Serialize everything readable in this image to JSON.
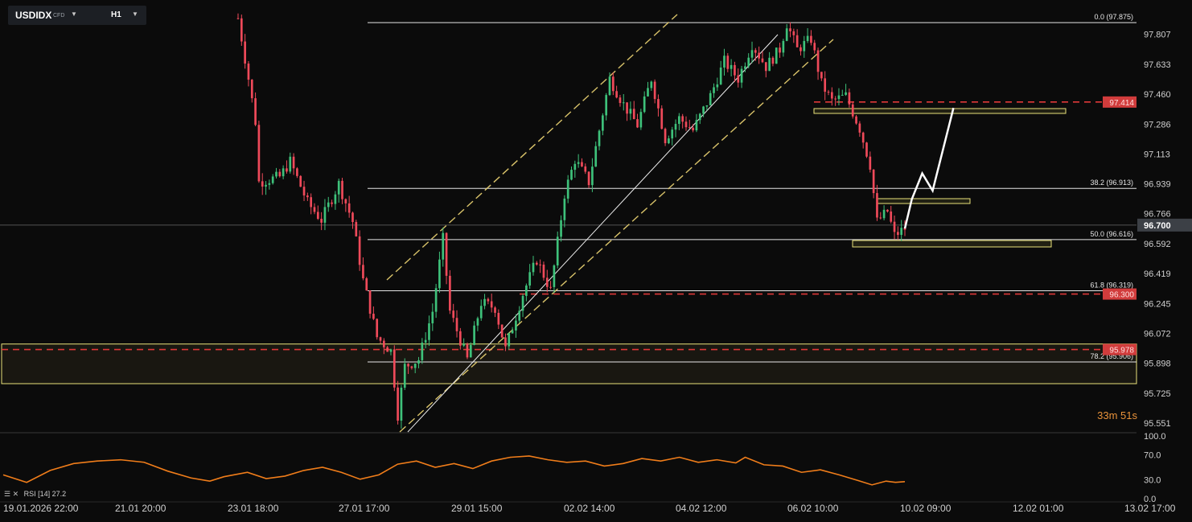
{
  "header": {
    "symbol": "USDIDX",
    "instrument_type": "CFD",
    "timeframe": "H1"
  },
  "countdown": "33m 51s",
  "rsi": {
    "label": "RSI [14]",
    "value": "27.2",
    "ticks": [
      "100.0",
      "70.0",
      "30.0",
      "0.0"
    ],
    "color": "#f07d1a"
  },
  "colors": {
    "background": "#0b0b0b",
    "up_candle": "#3ec17a",
    "down_candle": "#ef4a5a",
    "fib_line": "#e6e6e6",
    "zone_outline": "#e9e27a",
    "dashed_level": "#e03838",
    "price_tag": "#d13c3c",
    "channel": "#d9c36a"
  },
  "chart_data": {
    "type": "candlestick",
    "symbol": "USDIDX",
    "timeframe": "H1",
    "ylim": [
      95.5,
      97.95
    ],
    "y_ticks": [
      "97.807",
      "97.633",
      "97.460",
      "97.286",
      "97.113",
      "96.939",
      "96.766",
      "96.592",
      "96.419",
      "96.245",
      "96.072",
      "95.898",
      "95.725",
      "95.551"
    ],
    "x_labels": [
      "19.01.2026  22:00",
      "21.01  20:00",
      "23.01  18:00",
      "27.01  17:00",
      "29.01  15:00",
      "02.02  14:00",
      "04.02  12:00",
      "06.02  10:00",
      "10.02  09:00",
      "12.02  01:00",
      "13.02  17:00"
    ],
    "current_price": "96.700",
    "fibonacci": [
      {
        "label": "0.0 (97.875)",
        "value": 97.875
      },
      {
        "label": "38.2 (96.913)",
        "value": 96.913
      },
      {
        "label": "50.0 (96.616)",
        "value": 96.616
      },
      {
        "label": "61.8 (96.319)",
        "value": 96.319
      },
      {
        "label": "78.2 (95.906)",
        "value": 95.906
      }
    ],
    "dashed_levels": [
      {
        "label": "97.414",
        "value": 97.414
      },
      {
        "label": "96.300",
        "value": 96.3
      },
      {
        "label": "95.978",
        "value": 95.978
      }
    ],
    "support_zone": [
      95.78,
      96.01
    ],
    "path": [
      {
        "t": 0,
        "p": 97.9
      },
      {
        "t": 3,
        "p": 97.55
      },
      {
        "t": 5,
        "p": 97.3
      },
      {
        "t": 6,
        "p": 96.95
      },
      {
        "t": 12,
        "p": 96.98
      },
      {
        "t": 15,
        "p": 97.07
      },
      {
        "t": 20,
        "p": 96.83
      },
      {
        "t": 24,
        "p": 96.73
      },
      {
        "t": 29,
        "p": 96.94
      },
      {
        "t": 33,
        "p": 96.72
      },
      {
        "t": 36,
        "p": 96.38
      },
      {
        "t": 40,
        "p": 96.05
      },
      {
        "t": 44,
        "p": 95.97
      },
      {
        "t": 46,
        "p": 95.6
      },
      {
        "t": 48,
        "p": 95.88
      },
      {
        "t": 52,
        "p": 95.92
      },
      {
        "t": 56,
        "p": 96.2
      },
      {
        "t": 59,
        "p": 96.62
      },
      {
        "t": 61,
        "p": 96.2
      },
      {
        "t": 66,
        "p": 95.92
      },
      {
        "t": 70,
        "p": 96.25
      },
      {
        "t": 74,
        "p": 96.22
      },
      {
        "t": 77,
        "p": 95.98
      },
      {
        "t": 82,
        "p": 96.3
      },
      {
        "t": 86,
        "p": 96.5
      },
      {
        "t": 90,
        "p": 96.32
      },
      {
        "t": 94,
        "p": 96.88
      },
      {
        "t": 97,
        "p": 97.08
      },
      {
        "t": 101,
        "p": 96.95
      },
      {
        "t": 104,
        "p": 97.25
      },
      {
        "t": 107,
        "p": 97.55
      },
      {
        "t": 111,
        "p": 97.4
      },
      {
        "t": 115,
        "p": 97.28
      },
      {
        "t": 119,
        "p": 97.55
      },
      {
        "t": 123,
        "p": 97.2
      },
      {
        "t": 127,
        "p": 97.32
      },
      {
        "t": 131,
        "p": 97.25
      },
      {
        "t": 136,
        "p": 97.45
      },
      {
        "t": 140,
        "p": 97.65
      },
      {
        "t": 144,
        "p": 97.55
      },
      {
        "t": 148,
        "p": 97.75
      },
      {
        "t": 152,
        "p": 97.62
      },
      {
        "t": 156,
        "p": 97.72
      },
      {
        "t": 158,
        "p": 97.87
      },
      {
        "t": 161,
        "p": 97.72
      },
      {
        "t": 165,
        "p": 97.78
      },
      {
        "t": 168,
        "p": 97.52
      },
      {
        "t": 171,
        "p": 97.42
      },
      {
        "t": 175,
        "p": 97.45
      },
      {
        "t": 179,
        "p": 97.26
      },
      {
        "t": 182,
        "p": 97.05
      },
      {
        "t": 184,
        "p": 96.72
      },
      {
        "t": 187,
        "p": 96.78
      },
      {
        "t": 189,
        "p": 96.64
      },
      {
        "t": 192,
        "p": 96.68
      }
    ],
    "projection": [
      {
        "t": 192,
        "p": 96.68
      },
      {
        "t": 194,
        "p": 96.85
      },
      {
        "t": 197,
        "p": 97.0
      },
      {
        "t": 200,
        "p": 96.9
      },
      {
        "t": 206,
        "p": 97.38
      }
    ],
    "rsi_series": [
      {
        "t": 0,
        "v": 38
      },
      {
        "t": 5,
        "v": 26
      },
      {
        "t": 10,
        "v": 45
      },
      {
        "t": 15,
        "v": 56
      },
      {
        "t": 20,
        "v": 60
      },
      {
        "t": 25,
        "v": 62
      },
      {
        "t": 30,
        "v": 58
      },
      {
        "t": 35,
        "v": 44
      },
      {
        "t": 40,
        "v": 33
      },
      {
        "t": 44,
        "v": 28
      },
      {
        "t": 47,
        "v": 35
      },
      {
        "t": 52,
        "v": 42
      },
      {
        "t": 56,
        "v": 32
      },
      {
        "t": 60,
        "v": 36
      },
      {
        "t": 64,
        "v": 45
      },
      {
        "t": 68,
        "v": 50
      },
      {
        "t": 72,
        "v": 42
      },
      {
        "t": 76,
        "v": 31
      },
      {
        "t": 80,
        "v": 38
      },
      {
        "t": 84,
        "v": 55
      },
      {
        "t": 88,
        "v": 60
      },
      {
        "t": 92,
        "v": 50
      },
      {
        "t": 96,
        "v": 56
      },
      {
        "t": 100,
        "v": 48
      },
      {
        "t": 104,
        "v": 60
      },
      {
        "t": 108,
        "v": 66
      },
      {
        "t": 112,
        "v": 68
      },
      {
        "t": 116,
        "v": 62
      },
      {
        "t": 120,
        "v": 58
      },
      {
        "t": 124,
        "v": 60
      },
      {
        "t": 128,
        "v": 52
      },
      {
        "t": 132,
        "v": 56
      },
      {
        "t": 136,
        "v": 64
      },
      {
        "t": 140,
        "v": 60
      },
      {
        "t": 144,
        "v": 66
      },
      {
        "t": 148,
        "v": 58
      },
      {
        "t": 152,
        "v": 62
      },
      {
        "t": 156,
        "v": 57
      },
      {
        "t": 158,
        "v": 66
      },
      {
        "t": 162,
        "v": 54
      },
      {
        "t": 166,
        "v": 52
      },
      {
        "t": 170,
        "v": 42
      },
      {
        "t": 174,
        "v": 46
      },
      {
        "t": 178,
        "v": 38
      },
      {
        "t": 182,
        "v": 29
      },
      {
        "t": 185,
        "v": 22
      },
      {
        "t": 188,
        "v": 28
      },
      {
        "t": 190,
        "v": 26
      },
      {
        "t": 192,
        "v": 27.2
      }
    ]
  }
}
